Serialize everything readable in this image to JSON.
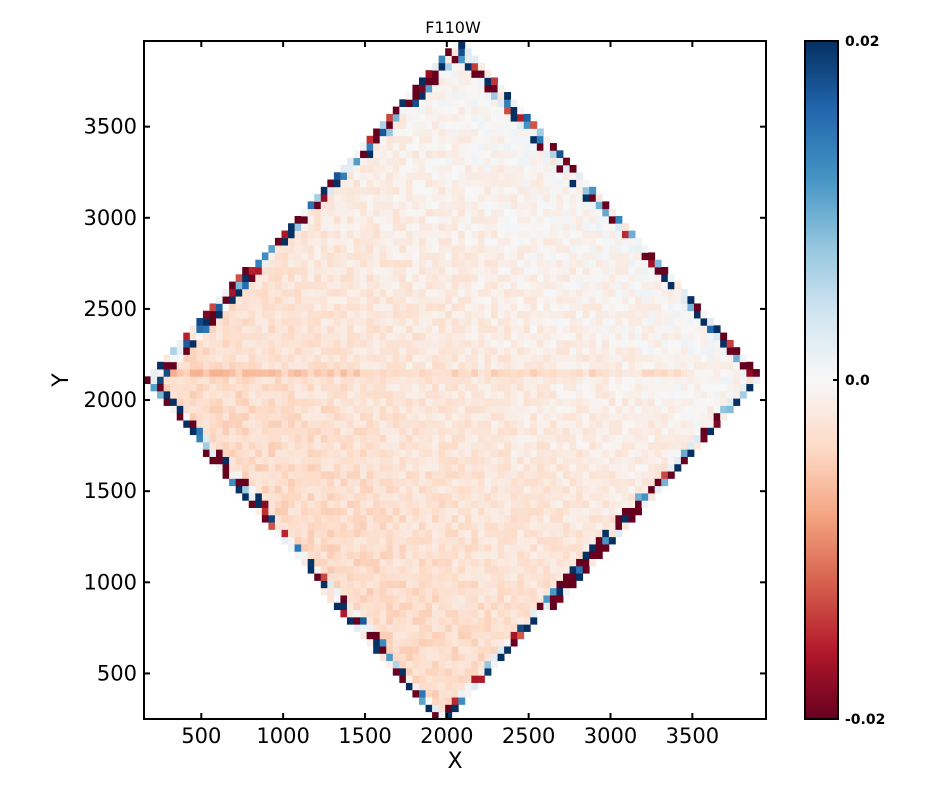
{
  "chart_data": {
    "type": "heatmap",
    "title": "F110W",
    "xlabel": "X",
    "ylabel": "Y",
    "xlim": [
      150,
      3950
    ],
    "ylim": [
      250,
      3970
    ],
    "x_ticks": [
      500,
      1000,
      1500,
      2000,
      2500,
      3000,
      3500
    ],
    "x_tick_labels": [
      "500",
      "1000",
      "1500",
      "2000",
      "2500",
      "3000",
      "3500"
    ],
    "y_ticks": [
      500,
      1000,
      1500,
      2000,
      2500,
      3000,
      3500
    ],
    "y_tick_labels": [
      "500",
      "1000",
      "1500",
      "2000",
      "2500",
      "3000",
      "3500"
    ],
    "colormap": "RdBu",
    "color_range": [
      -0.02,
      0.02
    ],
    "colorbar_ticks": [
      0.02,
      0.0,
      -0.02
    ],
    "colorbar_tick_labels": [
      "0.02",
      "0.0",
      "-0.02"
    ],
    "footprint": {
      "shape": "diamond",
      "vertices": [
        [
          2070,
          3970
        ],
        [
          3950,
          2130
        ],
        [
          1960,
          200
        ],
        [
          150,
          2110
        ]
      ]
    },
    "cell_size": 40,
    "field_description_values": {
      "lower_left_mean": -0.005,
      "upper_right_mean": 0.002,
      "edge_noise_amplitude": 0.03,
      "streak_y": 2150,
      "streak_value": -0.006
    },
    "grid": false,
    "colors": {
      "colormap_stops": [
        "#67001f",
        "#b2182b",
        "#d6604d",
        "#f4a582",
        "#fddbc7",
        "#f7f7f7",
        "#d1e5f0",
        "#92c5de",
        "#4393c3",
        "#2166ac",
        "#053061"
      ],
      "frame": "#000000",
      "background": "#ffffff"
    }
  }
}
